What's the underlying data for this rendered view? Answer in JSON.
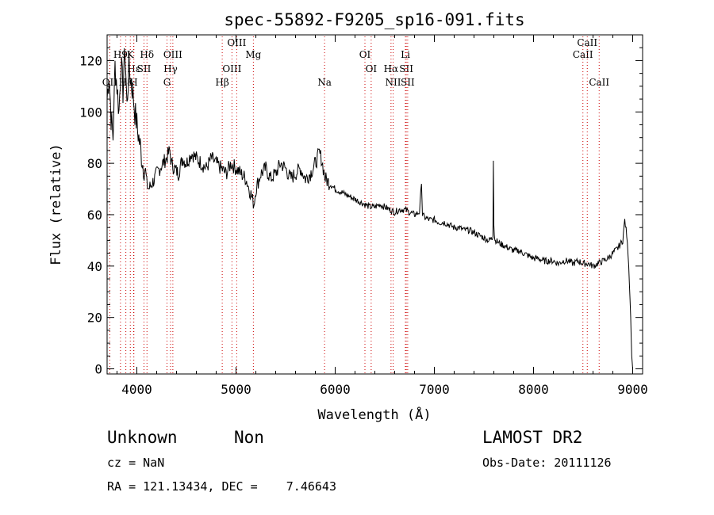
{
  "chart_data": {
    "type": "line",
    "title": "spec-55892-F9205_sp16-091.fits",
    "xlabel": "Wavelength (Å)",
    "ylabel": "Flux (relative)",
    "xlim": [
      3700,
      9100
    ],
    "ylim": [
      -2,
      130
    ],
    "xticks": [
      4000,
      5000,
      6000,
      7000,
      8000,
      9000
    ],
    "yticks": [
      0,
      20,
      40,
      60,
      80,
      100,
      120
    ],
    "grid": false,
    "line_color": "#000000",
    "marker_color": "#cc0000",
    "series": [
      {
        "x": [
          3700,
          3720,
          3740,
          3760,
          3780,
          3800,
          3820,
          3840,
          3860,
          3880,
          3900,
          3920,
          3940,
          3960,
          3980,
          4000,
          4020,
          4040,
          4060,
          4080,
          4100,
          4120,
          4150,
          4180,
          4200,
          4230,
          4260,
          4300,
          4330,
          4350,
          4380,
          4420,
          4460,
          4500,
          4550,
          4600,
          4650,
          4700,
          4750,
          4800,
          4850,
          4900,
          4950,
          5000,
          5050,
          5100,
          5150,
          5180,
          5200,
          5250,
          5300,
          5350,
          5400,
          5450,
          5500,
          5550,
          5600,
          5650,
          5700,
          5750,
          5800,
          5820,
          5840,
          5860,
          5880,
          5900,
          5950,
          6000,
          6050,
          6100,
          6150,
          6200,
          6250,
          6300,
          6350,
          6400,
          6450,
          6500,
          6550,
          6600,
          6650,
          6700,
          6750,
          6800,
          6850,
          6870,
          6880,
          6900,
          6950,
          7000,
          7050,
          7100,
          7150,
          7200,
          7250,
          7300,
          7350,
          7400,
          7450,
          7500,
          7550,
          7590,
          7595,
          7600,
          7605,
          7610,
          7620,
          7650,
          7700,
          7750,
          7800,
          7850,
          7900,
          7950,
          8000,
          8050,
          8100,
          8150,
          8200,
          8250,
          8300,
          8350,
          8400,
          8450,
          8500,
          8550,
          8600,
          8650,
          8700,
          8750,
          8800,
          8850,
          8900,
          8920,
          8940,
          8960,
          8980,
          8990,
          9000
        ],
        "y": [
          105,
          115,
          98,
          90,
          118,
          110,
          100,
          120,
          108,
          125,
          102,
          118,
          112,
          108,
          100,
          95,
          90,
          85,
          80,
          78,
          72,
          70,
          72,
          74,
          76,
          78,
          80,
          82,
          85,
          80,
          78,
          76,
          82,
          80,
          84,
          82,
          80,
          78,
          82,
          80,
          78,
          76,
          80,
          78,
          76,
          74,
          68,
          64,
          70,
          76,
          78,
          74,
          76,
          80,
          78,
          74,
          76,
          78,
          74,
          76,
          80,
          82,
          84,
          82,
          78,
          74,
          72,
          70,
          69,
          68,
          67,
          66,
          65,
          64,
          63,
          63,
          64,
          63,
          62,
          61,
          62,
          62,
          61,
          60,
          61,
          72,
          60,
          59,
          58,
          58,
          57,
          57,
          56,
          55,
          55,
          54,
          54,
          53,
          52,
          51,
          50,
          51,
          81,
          56,
          52,
          50,
          50,
          49,
          48,
          47,
          46,
          46,
          45,
          44,
          43,
          43,
          42,
          42,
          42,
          41,
          42,
          42,
          41,
          42,
          41,
          41,
          40,
          41,
          42,
          43,
          45,
          47,
          50,
          58,
          52,
          40,
          20,
          5,
          0
        ]
      }
    ],
    "line_markers": [
      {
        "label": "H9",
        "x": 3835,
        "row": 1
      },
      {
        "label": "OII",
        "x": 3727,
        "row": 3
      },
      {
        "label": "H8",
        "x": 3889,
        "row": 3
      },
      {
        "label": "Hε",
        "x": 3970,
        "row": 2
      },
      {
        "label": "K",
        "x": 3934,
        "row": 1
      },
      {
        "label": "H",
        "x": 3968,
        "row": 3
      },
      {
        "label": "SII",
        "x": 4072,
        "row": 2
      },
      {
        "label": "Hδ",
        "x": 4102,
        "row": 1
      },
      {
        "label": "OIII",
        "x": 4363,
        "row": 1
      },
      {
        "label": "Hγ",
        "x": 4340,
        "row": 2
      },
      {
        "label": "G",
        "x": 4304,
        "row": 3
      },
      {
        "label": "Hβ",
        "x": 4861,
        "row": 3
      },
      {
        "label": "OIII",
        "x": 4959,
        "row": 2
      },
      {
        "label": "OIII",
        "x": 5007,
        "row": 0
      },
      {
        "label": "Mg",
        "x": 5175,
        "row": 1
      },
      {
        "label": "Na",
        "x": 5893,
        "row": 3
      },
      {
        "label": "OI",
        "x": 6300,
        "row": 1
      },
      {
        "label": "OI",
        "x": 6363,
        "row": 2
      },
      {
        "label": "Hα",
        "x": 6563,
        "row": 2
      },
      {
        "label": "NII",
        "x": 6584,
        "row": 3
      },
      {
        "label": "Li",
        "x": 6708,
        "row": 1
      },
      {
        "label": "SII",
        "x": 6717,
        "row": 2
      },
      {
        "label": "SII",
        "x": 6731,
        "row": 3
      },
      {
        "label": "CaII",
        "x": 8498,
        "row": 1
      },
      {
        "label": "CaII",
        "x": 8542,
        "row": 0
      },
      {
        "label": "CaII",
        "x": 8662,
        "row": 3
      }
    ]
  },
  "info": {
    "class": "Unknown",
    "subclass": "Non",
    "cz": "cz = NaN",
    "coords": "RA = 121.13434, DEC =    7.46643",
    "survey": "LAMOST DR2",
    "obs_date": "Obs-Date: 20111126"
  }
}
